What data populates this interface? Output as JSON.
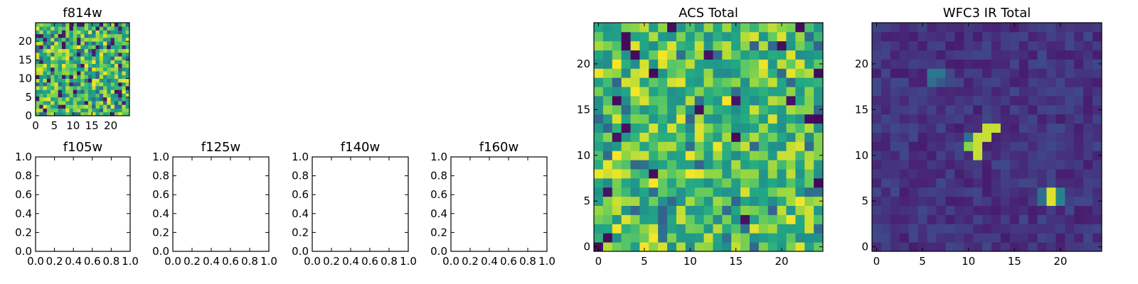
{
  "chart_data": [
    {
      "id": "f814w",
      "type": "heatmap",
      "title": "f814w",
      "colormap": "viridis",
      "grid_size": 25,
      "xlim": [
        0,
        25
      ],
      "ylim": [
        0,
        25
      ],
      "xticks": [
        0,
        5,
        10,
        15,
        20
      ],
      "yticks": [
        0,
        5,
        10,
        15,
        20
      ],
      "xtick_labels": [
        "0",
        "5",
        "10",
        "15",
        "20"
      ],
      "ytick_labels": [
        "0",
        "5",
        "10",
        "15",
        "20"
      ],
      "values_description": "noise field, mostly yellow-green with scattered dark cells",
      "seed": 814
    },
    {
      "id": "f105w",
      "type": "empty",
      "title": "f105w",
      "xlim": [
        0,
        1
      ],
      "ylim": [
        0,
        1
      ],
      "xtick_labels": [
        "0.0",
        "0.2",
        "0.4",
        "0.6",
        "0.8",
        "1.0"
      ],
      "ytick_labels": [
        "0.0",
        "0.2",
        "0.4",
        "0.6",
        "0.8",
        "1.0"
      ]
    },
    {
      "id": "f125w",
      "type": "empty",
      "title": "f125w",
      "xlim": [
        0,
        1
      ],
      "ylim": [
        0,
        1
      ],
      "xtick_labels": [
        "0.0",
        "0.2",
        "0.4",
        "0.6",
        "0.8",
        "1.0"
      ],
      "ytick_labels": [
        "0.0",
        "0.2",
        "0.4",
        "0.6",
        "0.8",
        "1.0"
      ]
    },
    {
      "id": "f140w",
      "type": "empty",
      "title": "f140w",
      "xlim": [
        0,
        1
      ],
      "ylim": [
        0,
        1
      ],
      "xtick_labels": [
        "0.0",
        "0.2",
        "0.4",
        "0.6",
        "0.8",
        "1.0"
      ],
      "ytick_labels": [
        "0.0",
        "0.2",
        "0.4",
        "0.6",
        "0.8",
        "1.0"
      ]
    },
    {
      "id": "f160w",
      "type": "empty",
      "title": "f160w",
      "xlim": [
        0,
        1
      ],
      "ylim": [
        0,
        1
      ],
      "xtick_labels": [
        "0.0",
        "0.2",
        "0.4",
        "0.6",
        "0.8",
        "1.0"
      ],
      "ytick_labels": [
        "0.0",
        "0.2",
        "0.4",
        "0.6",
        "0.8",
        "1.0"
      ]
    },
    {
      "id": "acs-total",
      "type": "heatmap",
      "title": "ACS Total",
      "colormap": "viridis",
      "grid_size": 25,
      "xlim": [
        -0.5,
        24.5
      ],
      "ylim": [
        -0.5,
        24.5
      ],
      "xticks": [
        0,
        5,
        10,
        15,
        20
      ],
      "yticks": [
        0,
        5,
        10,
        15,
        20
      ],
      "xtick_labels": [
        "0",
        "5",
        "10",
        "15",
        "20"
      ],
      "ytick_labels": [
        "0",
        "5",
        "10",
        "15",
        "20"
      ],
      "values_description": "noise field, mostly green-yellow with few dark cells",
      "seed": 2024
    },
    {
      "id": "wfc3-ir-total",
      "type": "heatmap",
      "title": "WFC3 IR Total",
      "colormap": "viridis",
      "grid_size": 25,
      "xlim": [
        -0.5,
        24.5
      ],
      "ylim": [
        -0.5,
        24.5
      ],
      "xticks": [
        0,
        5,
        10,
        15,
        20
      ],
      "yticks": [
        0,
        5,
        10,
        15,
        20
      ],
      "xtick_labels": [
        "0",
        "5",
        "10",
        "15",
        "20"
      ],
      "ytick_labels": [
        "0",
        "5",
        "10",
        "15",
        "20"
      ],
      "values_description": "dark purple background with bright sources",
      "seed": 160,
      "bright_cells": [
        {
          "x": 11,
          "y": 12,
          "v": 0.95
        },
        {
          "x": 12,
          "y": 12,
          "v": 0.95
        },
        {
          "x": 12,
          "y": 13,
          "v": 0.95
        },
        {
          "x": 13,
          "y": 13,
          "v": 0.95
        },
        {
          "x": 10,
          "y": 11,
          "v": 0.88
        },
        {
          "x": 11,
          "y": 11,
          "v": 0.95
        },
        {
          "x": 11,
          "y": 10,
          "v": 0.95
        },
        {
          "x": 10,
          "y": 12,
          "v": 0.45
        },
        {
          "x": 6,
          "y": 19,
          "v": 0.5
        },
        {
          "x": 7,
          "y": 19,
          "v": 0.5
        },
        {
          "x": 6,
          "y": 18,
          "v": 0.45
        },
        {
          "x": 7,
          "y": 18,
          "v": 0.35
        },
        {
          "x": 19,
          "y": 5,
          "v": 0.97
        },
        {
          "x": 19,
          "y": 6,
          "v": 0.97
        },
        {
          "x": 20,
          "y": 5,
          "v": 0.55
        },
        {
          "x": 20,
          "y": 6,
          "v": 0.55
        },
        {
          "x": 18,
          "y": 5,
          "v": 0.45
        },
        {
          "x": 18,
          "y": 6,
          "v": 0.45
        }
      ]
    }
  ]
}
